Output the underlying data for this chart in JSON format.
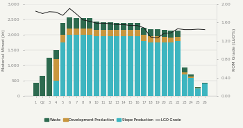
{
  "years": [
    "1",
    "Q2",
    "3",
    "4",
    "5",
    "6",
    "7",
    "8",
    "9",
    "10",
    "11",
    "12",
    "13",
    "14",
    "15",
    "16",
    "17",
    "18",
    "19",
    "20",
    "21",
    "22",
    "23",
    "24",
    "25",
    "26"
  ],
  "waste": [
    430,
    650,
    1250,
    300,
    380,
    350,
    340,
    340,
    340,
    280,
    260,
    240,
    230,
    230,
    230,
    230,
    230,
    220,
    220,
    220,
    220,
    200,
    150,
    60,
    30,
    30
  ],
  "dev_prod": [
    0,
    0,
    0,
    700,
    250,
    200,
    200,
    200,
    200,
    200,
    200,
    200,
    200,
    200,
    200,
    200,
    200,
    200,
    200,
    170,
    160,
    130,
    80,
    40,
    20,
    0
  ],
  "stope_prod": [
    0,
    0,
    0,
    500,
    1750,
    2000,
    2000,
    2000,
    2000,
    1950,
    1950,
    1950,
    1950,
    1950,
    1950,
    1950,
    1800,
    1750,
    1750,
    1750,
    1750,
    1800,
    700,
    600,
    250,
    400
  ],
  "lgo_grade": [
    1.84,
    1.79,
    1.83,
    1.82,
    1.75,
    1.9,
    1.78,
    1.65,
    1.62,
    1.58,
    1.58,
    1.57,
    1.55,
    1.55,
    1.53,
    1.53,
    1.48,
    1.28,
    1.26,
    1.36,
    1.37,
    1.46,
    1.44,
    1.44,
    1.45,
    1.44
  ],
  "waste_color": "#2d6a4f",
  "dev_prod_color": "#c8963e",
  "stope_prod_color": "#3db5c0",
  "lgo_grade_color": "#1a1a1a",
  "ylabel_left": "Material Mined (kt)",
  "ylabel_right": "ROM Grade (Li₂O%)",
  "ylim_left": [
    0,
    3000
  ],
  "ylim_right": [
    0.0,
    2.0
  ],
  "yticks_left": [
    0,
    500,
    1000,
    1500,
    2000,
    2500,
    3000
  ],
  "yticks_right": [
    0.0,
    0.4,
    0.8,
    1.2,
    1.6,
    2.0
  ],
  "background_color": "#f5f5f0",
  "legend_labels": [
    "Waste",
    "Development Production",
    "Stope Production",
    "LGO Grade"
  ]
}
